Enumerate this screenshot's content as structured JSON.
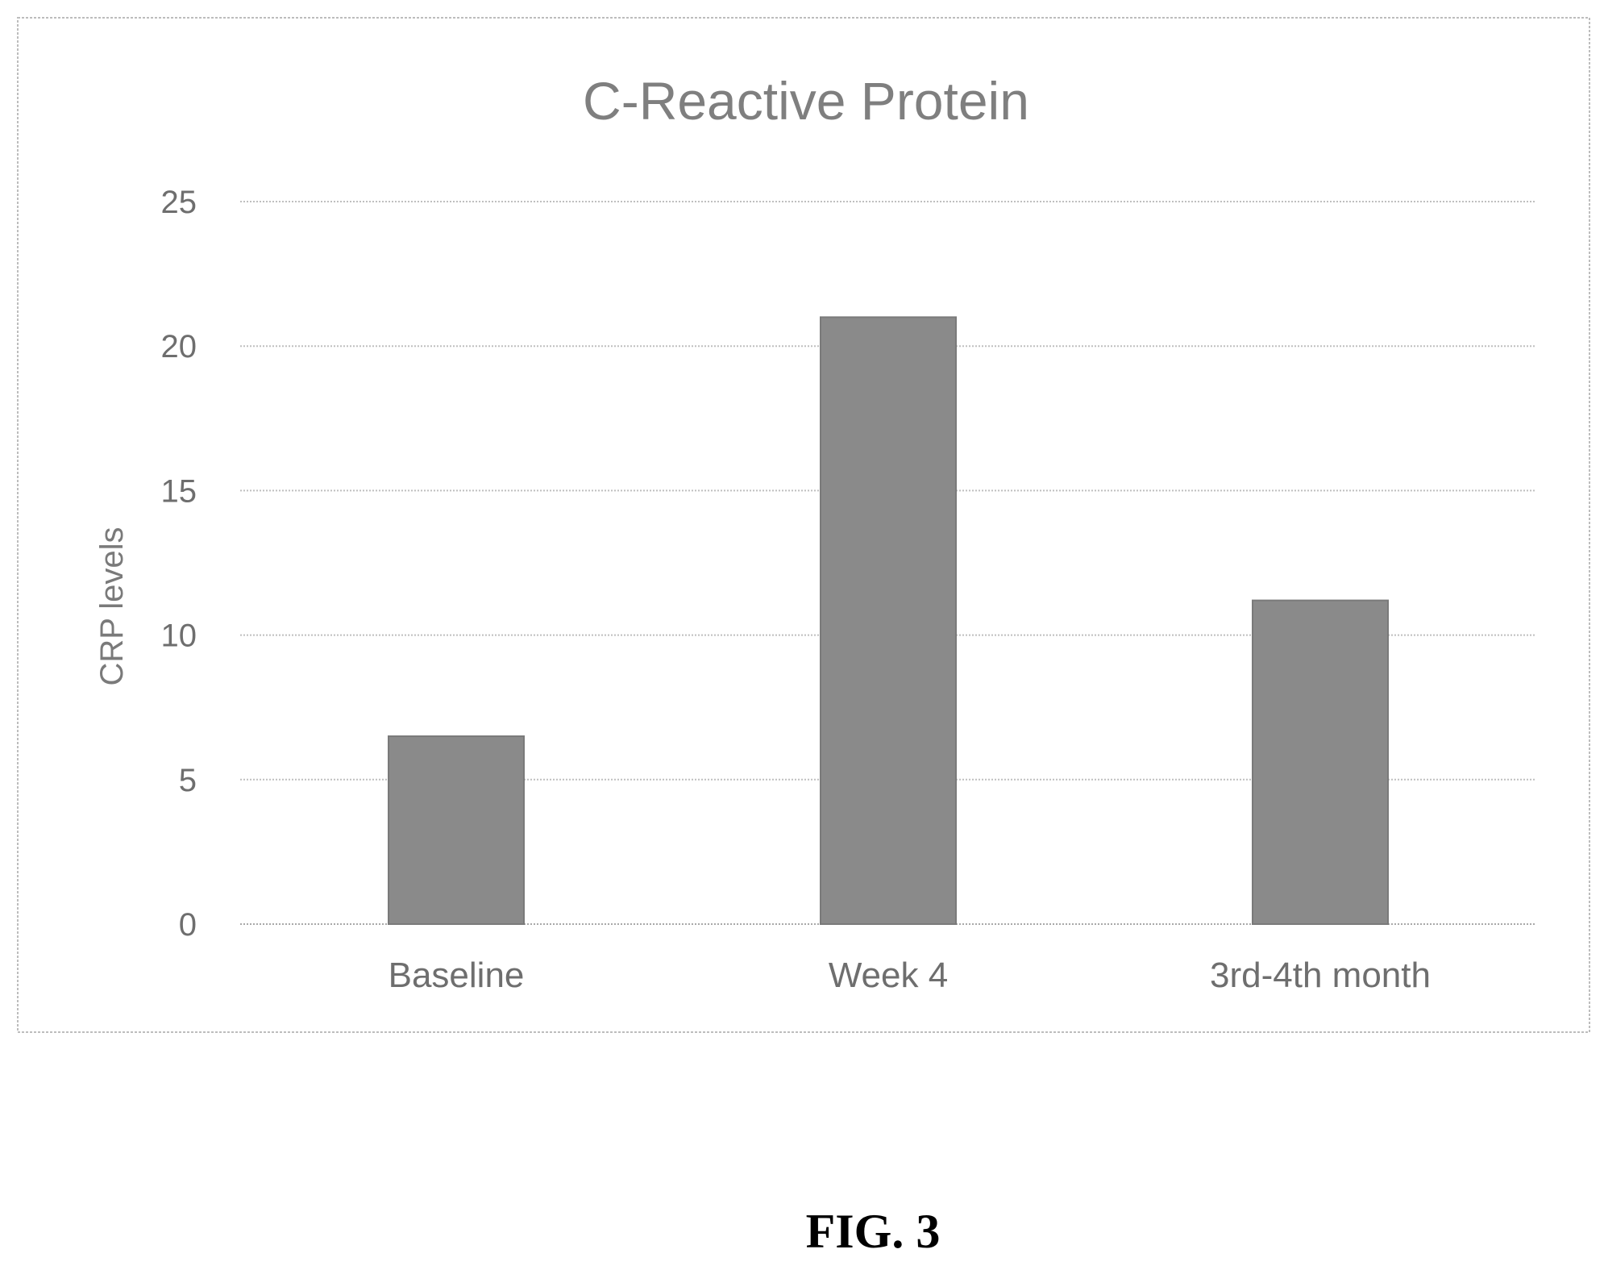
{
  "figure": {
    "caption": "FIG. 3"
  },
  "colors": {
    "bar": "#8a8a8a",
    "bar_edge": "#7a7a7a"
  },
  "chart_data": {
    "type": "bar",
    "title": "C-Reactive Protein",
    "xlabel": "",
    "ylabel": "CRP levels",
    "categories": [
      "Baseline",
      "Week 4",
      "3rd-4th month"
    ],
    "values": [
      6.5,
      21,
      11.2
    ],
    "ylim": [
      0,
      25
    ],
    "yticks": [
      0,
      5,
      10,
      15,
      20,
      25
    ],
    "grid": true,
    "legend": "none"
  }
}
